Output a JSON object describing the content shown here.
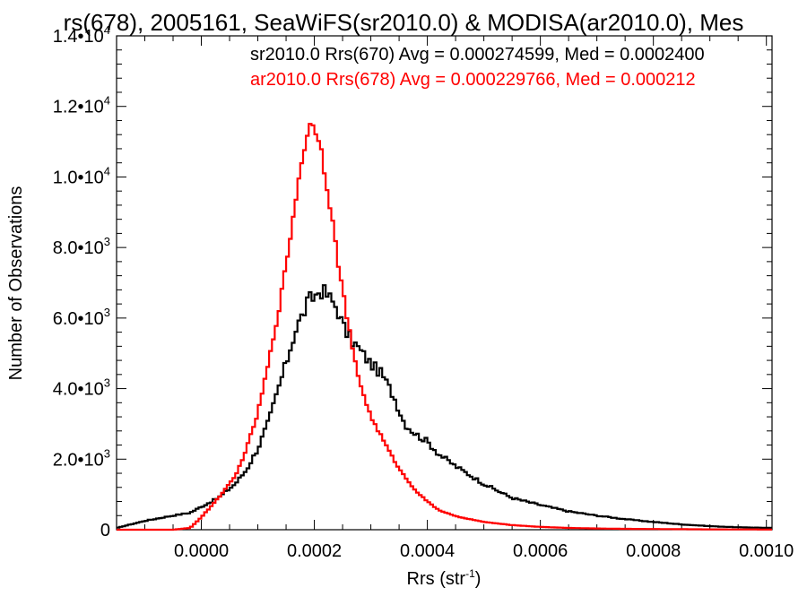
{
  "chart_data": {
    "type": "histogram-step",
    "title": "rs(678), 2005161, SeaWiFS(sr2010.0) & MODISA(ar2010.0), Mes",
    "xlabel": "Rrs (str",
    "xlabel_sup": "-1",
    "xlabel_close": ")",
    "ylabel": "Number of Observations",
    "xlim": [
      -0.00015,
      0.00101
    ],
    "ylim": [
      0,
      14000
    ],
    "x_ticks": [
      0.0,
      0.0002,
      0.0004,
      0.0006,
      0.0008,
      0.001
    ],
    "x_tick_labels": [
      "0.0000",
      "0.0002",
      "0.0004",
      "0.0006",
      "0.0008",
      "0.0010"
    ],
    "y_ticks": [
      {
        "value": 0,
        "mantissa": "0",
        "exp": ""
      },
      {
        "value": 2000,
        "mantissa": "2.0•10",
        "exp": "3"
      },
      {
        "value": 4000,
        "mantissa": "4.0•10",
        "exp": "3"
      },
      {
        "value": 6000,
        "mantissa": "6.0•10",
        "exp": "3"
      },
      {
        "value": 8000,
        "mantissa": "8.0•10",
        "exp": "3"
      },
      {
        "value": 10000,
        "mantissa": "1.0•10",
        "exp": "4"
      },
      {
        "value": 12000,
        "mantissa": "1.2•10",
        "exp": "4"
      },
      {
        "value": 14000,
        "mantissa": "1.4•10",
        "exp": "4"
      }
    ],
    "grid": false,
    "legend_position": "top-right",
    "series": [
      {
        "name": "sr2010.0 Rrs(670) Avg = 0.000274599, Med = 0.0002400",
        "color": "#000000",
        "x": [
          -0.00015,
          -0.0001,
          -5e-05,
          -2e-05,
          0.0,
          3e-05,
          6e-05,
          8e-05,
          0.0001,
          0.00012,
          0.00014,
          0.00015,
          0.00016,
          0.00017,
          0.00018,
          0.00019,
          0.0002,
          0.00021,
          0.00022,
          0.00023,
          0.00024,
          0.00025,
          0.00026,
          0.00027,
          0.00028,
          0.0003,
          0.00032,
          0.00034,
          0.00036,
          0.00038,
          0.0004,
          0.00042,
          0.00045,
          0.0005,
          0.00055,
          0.0006,
          0.00065,
          0.0007,
          0.00075,
          0.0008,
          0.00085,
          0.0009,
          0.00095,
          0.00101
        ],
        "values": [
          50,
          250,
          400,
          480,
          650,
          900,
          1300,
          1700,
          2300,
          3100,
          4200,
          4700,
          5300,
          5800,
          6100,
          6500,
          6600,
          6800,
          6700,
          6500,
          6300,
          5800,
          5500,
          5300,
          5100,
          4700,
          4400,
          3800,
          3000,
          2700,
          2500,
          2150,
          1800,
          1300,
          900,
          700,
          520,
          400,
          300,
          220,
          150,
          100,
          70,
          50
        ]
      },
      {
        "name": "ar2010.0 Rrs(678) Avg = 0.000229766, Med = 0.000212",
        "color": "#ff0000",
        "x": [
          -0.00015,
          -0.0001,
          -5e-05,
          -2e-05,
          0.0,
          3e-05,
          6e-05,
          8e-05,
          0.0001,
          0.00012,
          0.00014,
          0.00015,
          0.00016,
          0.00017,
          0.00018,
          0.00019,
          0.0002,
          0.00021,
          0.00022,
          0.00023,
          0.00024,
          0.00025,
          0.00026,
          0.00027,
          0.00028,
          0.0003,
          0.00032,
          0.00034,
          0.00036,
          0.00038,
          0.0004,
          0.00042,
          0.00045,
          0.0005,
          0.00055,
          0.0006,
          0.00065,
          0.0007,
          0.00075,
          0.0008,
          0.00085,
          0.0009,
          0.00095,
          0.00101
        ],
        "values": [
          0,
          0,
          0,
          50,
          350,
          900,
          1500,
          2300,
          3300,
          4800,
          6500,
          7500,
          8600,
          9700,
          10700,
          11400,
          11500,
          11000,
          10000,
          9000,
          7800,
          6800,
          5800,
          4900,
          4200,
          3200,
          2600,
          2000,
          1500,
          1100,
          800,
          560,
          380,
          220,
          130,
          80,
          50,
          35,
          25,
          20,
          15,
          10,
          8,
          5
        ]
      }
    ]
  }
}
